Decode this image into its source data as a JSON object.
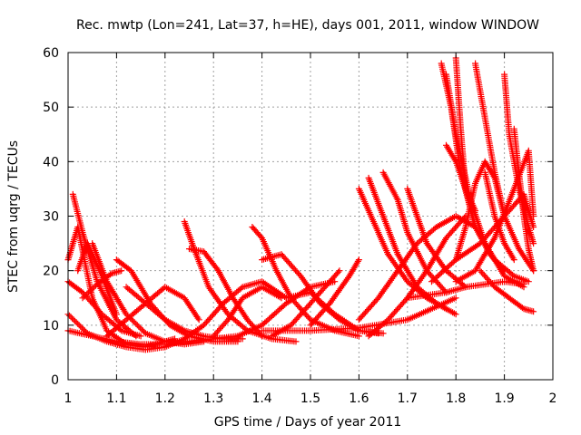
{
  "chart_data": {
    "type": "scatter",
    "title": "Rec. mwtp (Lon=241, Lat=37, h=HE), days 001, 2011, window WINDOW",
    "xlabel": "GPS time / Days of year 2011",
    "ylabel": "STEC from uqrg / TECUs",
    "xlim": [
      1,
      2
    ],
    "ylim": [
      0,
      60
    ],
    "xticks": [
      "1",
      "1.1",
      "1.2",
      "1.3",
      "1.4",
      "1.5",
      "1.6",
      "1.7",
      "1.8",
      "1.9",
      "2"
    ],
    "yticks": [
      "0",
      "10",
      "20",
      "30",
      "40",
      "50",
      "60"
    ],
    "grid": true,
    "marker": "plus",
    "series_color": "#ff0000",
    "arcs": [
      {
        "x": [
          1.0,
          1.02,
          1.05,
          1.08,
          1.12,
          1.16,
          1.2,
          1.22
        ],
        "y": [
          22,
          28,
          15,
          9,
          6.5,
          6,
          7,
          7.5
        ]
      },
      {
        "x": [
          1.0,
          1.03,
          1.07,
          1.11,
          1.15
        ],
        "y": [
          18,
          16,
          12,
          9,
          8
        ]
      },
      {
        "x": [
          1.0,
          1.04,
          1.08,
          1.12,
          1.16,
          1.2
        ],
        "y": [
          12,
          8.5,
          7,
          6,
          5.5,
          6
        ]
      },
      {
        "x": [
          1.01,
          1.03,
          1.06,
          1.1,
          1.14
        ],
        "y": [
          34,
          27,
          18,
          11,
          8
        ]
      },
      {
        "x": [
          1.02,
          1.04,
          1.07,
          1.1
        ],
        "y": [
          20,
          25,
          19,
          12
        ]
      },
      {
        "x": [
          1.05,
          1.08,
          1.12,
          1.16,
          1.2,
          1.24,
          1.28
        ],
        "y": [
          25,
          18,
          12,
          8.5,
          7,
          6.5,
          7
        ]
      },
      {
        "x": [
          1.0,
          1.05,
          1.1,
          1.15,
          1.2,
          1.25,
          1.3,
          1.35
        ],
        "y": [
          9,
          8,
          7,
          6.5,
          6.5,
          7,
          7.5,
          8
        ]
      },
      {
        "x": [
          1.03,
          1.06,
          1.09,
          1.11
        ],
        "y": [
          15,
          17.5,
          19.5,
          20
        ]
      },
      {
        "x": [
          1.1,
          1.13,
          1.17,
          1.21,
          1.25,
          1.3,
          1.35
        ],
        "y": [
          22,
          20,
          14,
          10,
          8,
          7,
          7
        ]
      },
      {
        "x": [
          1.08,
          1.12,
          1.16,
          1.2,
          1.24,
          1.27
        ],
        "y": [
          8,
          11,
          14,
          17,
          15,
          11
        ]
      },
      {
        "x": [
          1.12,
          1.16,
          1.2,
          1.24,
          1.28,
          1.32,
          1.36
        ],
        "y": [
          17,
          14,
          11,
          9,
          8,
          7.5,
          7.5
        ]
      },
      {
        "x": [
          1.24,
          1.26,
          1.29,
          1.33,
          1.37,
          1.42,
          1.47
        ],
        "y": [
          29,
          24,
          17,
          12,
          9,
          7.5,
          7
        ]
      },
      {
        "x": [
          1.25,
          1.28,
          1.31,
          1.34,
          1.37,
          1.4
        ],
        "y": [
          24,
          23.5,
          20,
          15,
          11,
          8
        ]
      },
      {
        "x": [
          1.2,
          1.24,
          1.28,
          1.32,
          1.36,
          1.4,
          1.45
        ],
        "y": [
          6,
          7.5,
          10,
          14,
          17,
          18,
          15
        ]
      },
      {
        "x": [
          1.3,
          1.33,
          1.36,
          1.4,
          1.44
        ],
        "y": [
          8,
          11,
          15,
          17,
          15
        ]
      },
      {
        "x": [
          1.38,
          1.4,
          1.43,
          1.46,
          1.5,
          1.55,
          1.6
        ],
        "y": [
          28,
          26,
          20,
          15,
          11,
          9,
          8
        ]
      },
      {
        "x": [
          1.4,
          1.44,
          1.48,
          1.52,
          1.56,
          1.6,
          1.64
        ],
        "y": [
          22,
          23,
          19,
          14,
          11,
          9,
          8.5
        ]
      },
      {
        "x": [
          1.35,
          1.4,
          1.45,
          1.5,
          1.55
        ],
        "y": [
          8,
          10,
          14,
          17,
          18
        ]
      },
      {
        "x": [
          1.42,
          1.46,
          1.5,
          1.54,
          1.56
        ],
        "y": [
          8,
          10,
          14,
          18,
          20
        ]
      },
      {
        "x": [
          1.45,
          1.5,
          1.55,
          1.6,
          1.65
        ],
        "y": [
          15,
          16,
          12,
          9,
          8.5
        ]
      },
      {
        "x": [
          1.5,
          1.54,
          1.58,
          1.6
        ],
        "y": [
          10,
          14,
          19,
          22
        ]
      },
      {
        "x": [
          1.4,
          1.5,
          1.6,
          1.7,
          1.8
        ],
        "y": [
          9,
          9,
          9.5,
          11,
          15
        ]
      },
      {
        "x": [
          1.6,
          1.63,
          1.66,
          1.7,
          1.74,
          1.78
        ],
        "y": [
          35,
          29,
          23,
          18,
          15,
          13
        ]
      },
      {
        "x": [
          1.62,
          1.65,
          1.68,
          1.72,
          1.76,
          1.8
        ],
        "y": [
          37,
          30,
          23,
          17,
          14,
          12
        ]
      },
      {
        "x": [
          1.65,
          1.68,
          1.7,
          1.74,
          1.78
        ],
        "y": [
          38,
          33,
          27,
          20,
          16
        ]
      },
      {
        "x": [
          1.6,
          1.64,
          1.68,
          1.72,
          1.76,
          1.8,
          1.84
        ],
        "y": [
          11,
          15,
          20,
          25,
          28,
          30,
          28
        ]
      },
      {
        "x": [
          1.62,
          1.66,
          1.7,
          1.74,
          1.78,
          1.82
        ],
        "y": [
          8,
          11,
          15,
          20,
          26,
          30
        ]
      },
      {
        "x": [
          1.7,
          1.72,
          1.74,
          1.78,
          1.82
        ],
        "y": [
          35,
          30,
          25,
          20,
          17
        ]
      },
      {
        "x": [
          1.77,
          1.79,
          1.81,
          1.84,
          1.88,
          1.92,
          1.95
        ],
        "y": [
          58,
          50,
          38,
          28,
          22,
          19,
          18
        ]
      },
      {
        "x": [
          1.78,
          1.8,
          1.83,
          1.86,
          1.9,
          1.94
        ],
        "y": [
          56,
          45,
          33,
          25,
          19,
          17
        ]
      },
      {
        "x": [
          1.8,
          1.81,
          1.82,
          1.84,
          1.87,
          1.9
        ],
        "y": [
          59,
          46,
          35,
          28,
          23,
          20
        ]
      },
      {
        "x": [
          1.78,
          1.8,
          1.82,
          1.84
        ],
        "y": [
          43,
          40,
          35,
          31
        ]
      },
      {
        "x": [
          1.8,
          1.82,
          1.84,
          1.86,
          1.88,
          1.9,
          1.93,
          1.96
        ],
        "y": [
          22,
          28,
          36,
          40,
          37,
          30,
          24,
          20
        ]
      },
      {
        "x": [
          1.75,
          1.8,
          1.85,
          1.9,
          1.94,
          1.96
        ],
        "y": [
          18,
          22,
          25,
          30,
          34,
          28
        ]
      },
      {
        "x": [
          1.8,
          1.84,
          1.88,
          1.92,
          1.95,
          1.96
        ],
        "y": [
          18,
          20,
          26,
          35,
          42,
          30
        ]
      },
      {
        "x": [
          1.84,
          1.86,
          1.88,
          1.9
        ],
        "y": [
          58,
          48,
          38,
          30
        ]
      },
      {
        "x": [
          1.9,
          1.91,
          1.93,
          1.95,
          1.96
        ],
        "y": [
          56,
          45,
          35,
          28,
          25
        ]
      },
      {
        "x": [
          1.92,
          1.93,
          1.94,
          1.95,
          1.96
        ],
        "y": [
          46,
          38,
          30,
          24,
          20
        ]
      },
      {
        "x": [
          1.86,
          1.88,
          1.9,
          1.92
        ],
        "y": [
          38,
          30,
          25,
          22
        ]
      },
      {
        "x": [
          1.85,
          1.88,
          1.91,
          1.94,
          1.96
        ],
        "y": [
          20,
          17,
          15,
          13,
          12.5
        ]
      },
      {
        "x": [
          1.7,
          1.74,
          1.78,
          1.82,
          1.86,
          1.9,
          1.94
        ],
        "y": [
          15,
          15.5,
          16,
          17,
          17.5,
          18,
          17.5
        ]
      }
    ]
  }
}
